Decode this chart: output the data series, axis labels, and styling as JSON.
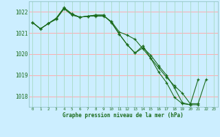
{
  "bg_color": "#cceeff",
  "grid_color_h": "#ffaaaa",
  "grid_color_v": "#aaddcc",
  "line_color": "#1a6b1a",
  "marker_color": "#1a6b1a",
  "title": "Graphe pression niveau de la mer (hPa)",
  "xlim": [
    -0.5,
    23.5
  ],
  "ylim": [
    1017.5,
    1022.5
  ],
  "yticks": [
    1018,
    1019,
    1020,
    1021,
    1022
  ],
  "xticks": [
    0,
    1,
    2,
    3,
    4,
    5,
    6,
    7,
    8,
    9,
    10,
    11,
    12,
    13,
    14,
    15,
    16,
    17,
    18,
    19,
    20,
    21,
    22,
    23
  ],
  "series": [
    {
      "x": [
        0,
        1,
        2,
        3,
        4,
        5,
        6,
        7,
        8,
        9,
        10,
        11,
        12,
        13,
        14,
        15,
        16,
        17,
        18,
        19,
        20,
        21,
        22
      ],
      "y": [
        1021.5,
        1021.2,
        1021.45,
        1021.65,
        1022.15,
        1021.85,
        1021.75,
        1021.8,
        1021.8,
        1021.8,
        1021.55,
        1021.05,
        1020.9,
        1020.7,
        1020.25,
        1019.8,
        1019.35,
        1018.9,
        1018.5,
        1018.15,
        1017.65,
        1017.65,
        1018.8
      ]
    },
    {
      "x": [
        0,
        1,
        2,
        3,
        4,
        5,
        6,
        7,
        8,
        9,
        10,
        11,
        12,
        13,
        14,
        15,
        16,
        17,
        18,
        19,
        20,
        21
      ],
      "y": [
        1021.5,
        1021.2,
        1021.45,
        1021.7,
        1022.2,
        1021.9,
        1021.75,
        1021.8,
        1021.85,
        1021.85,
        1021.5,
        1020.95,
        1020.45,
        1020.05,
        1020.3,
        1019.95,
        1019.45,
        1019.0,
        1018.4,
        1017.7,
        1017.6,
        1017.6
      ]
    },
    {
      "x": [
        0,
        1,
        2,
        3,
        4,
        5,
        6,
        7,
        8,
        9,
        10,
        11,
        12,
        13,
        14,
        15,
        16,
        17,
        18,
        19,
        20,
        21
      ],
      "y": [
        1021.5,
        1021.2,
        1021.45,
        1021.7,
        1022.2,
        1021.9,
        1021.75,
        1021.8,
        1021.85,
        1021.85,
        1021.5,
        1020.95,
        1020.45,
        1020.05,
        1020.4,
        1019.8,
        1019.15,
        1018.65,
        1017.95,
        1017.65,
        1017.6,
        1018.8
      ]
    }
  ]
}
